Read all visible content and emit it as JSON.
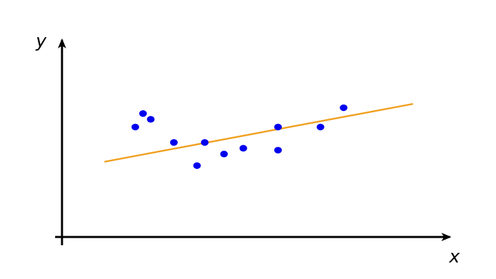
{
  "chart_data": {
    "type": "scatter",
    "xlabel": "x",
    "ylabel": "y",
    "xlim": [
      0,
      10
    ],
    "ylim": [
      0,
      10
    ],
    "grid": false,
    "points": [
      {
        "x": 1.9,
        "y": 5.7
      },
      {
        "x": 2.1,
        "y": 6.4
      },
      {
        "x": 2.3,
        "y": 6.1
      },
      {
        "x": 2.9,
        "y": 4.9
      },
      {
        "x": 3.5,
        "y": 3.7
      },
      {
        "x": 3.7,
        "y": 4.9
      },
      {
        "x": 4.2,
        "y": 4.3
      },
      {
        "x": 4.7,
        "y": 4.6
      },
      {
        "x": 5.6,
        "y": 5.7
      },
      {
        "x": 5.6,
        "y": 4.5
      },
      {
        "x": 6.7,
        "y": 5.7
      },
      {
        "x": 7.3,
        "y": 6.7
      }
    ],
    "trend_line": {
      "x": [
        1.1,
        9.1
      ],
      "y": [
        3.9,
        6.9
      ]
    },
    "colors": {
      "points": "#0000ee",
      "trend_line": "#f0a020",
      "axes": "#000000"
    }
  }
}
